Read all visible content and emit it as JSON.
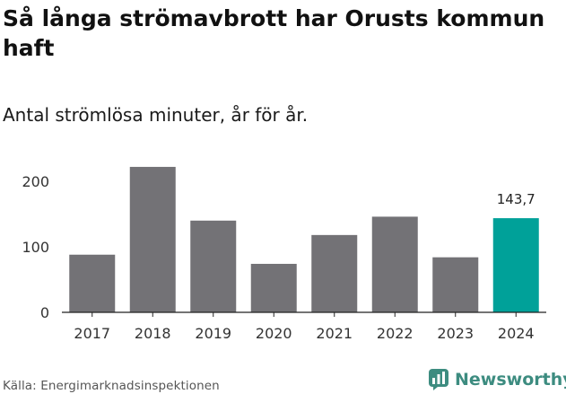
{
  "title": "Så långa strömavbrott har Orusts kommun haft",
  "subtitle": "Antal strömlösa minuter, år för år.",
  "source": "Källa: Energimarknadsinspektionen",
  "brand": {
    "name": "Newsworthy",
    "icon": "newsworthy-logo-icon",
    "color": "#3d8c80"
  },
  "colors": {
    "bar": "#737276",
    "highlight": "#00a199",
    "axis": "#222222",
    "grid": "#e0e0e0"
  },
  "chart_data": {
    "type": "bar",
    "title": "Så långa strömavbrott har Orusts kommun haft",
    "subtitle": "Antal strömlösa minuter, år för år.",
    "xlabel": "",
    "ylabel": "",
    "categories": [
      "2017",
      "2018",
      "2019",
      "2020",
      "2021",
      "2022",
      "2023",
      "2024"
    ],
    "values": [
      88,
      222,
      140,
      74,
      118,
      146,
      84,
      143.7
    ],
    "highlight_index": 7,
    "data_labels": [
      {
        "index": 7,
        "text": "143,7"
      }
    ],
    "yticks": [
      0,
      100,
      200
    ],
    "ylim": [
      0,
      230
    ],
    "grid": false
  }
}
